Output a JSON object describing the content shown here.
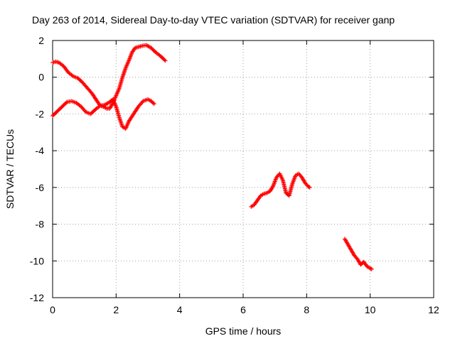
{
  "chart_data": {
    "type": "scatter",
    "title": "Day 263 of 2014, Sidereal Day-to-day VTEC variation (SDTVAR) for receiver ganp",
    "xlabel": "GPS time / hours",
    "ylabel": "SDTVAR / TECUs",
    "xlim": [
      0,
      12
    ],
    "ylim": [
      -12,
      2
    ],
    "xticks": [
      0,
      2,
      4,
      6,
      8,
      10,
      12
    ],
    "yticks": [
      2,
      0,
      -2,
      -4,
      -6,
      -8,
      -10,
      -12
    ],
    "grid": true,
    "marker": "plus",
    "color": "#ff0000",
    "series": [
      {
        "x": [
          0.0,
          0.1,
          0.2,
          0.35,
          0.5,
          0.65,
          0.8,
          0.95,
          1.1,
          1.25,
          1.4,
          1.5,
          1.6,
          1.7,
          1.8,
          1.9,
          2.0,
          2.1,
          2.2,
          2.3,
          2.4,
          2.5,
          2.6,
          2.7,
          2.8,
          2.95,
          3.1,
          3.25,
          3.4,
          3.55
        ],
        "y": [
          0.8,
          0.85,
          0.8,
          0.6,
          0.25,
          0.05,
          -0.05,
          -0.3,
          -0.6,
          -0.9,
          -1.3,
          -1.55,
          -1.6,
          -1.7,
          -1.7,
          -1.4,
          -1.0,
          -0.6,
          0.0,
          0.5,
          0.9,
          1.35,
          1.6,
          1.65,
          1.7,
          1.75,
          1.6,
          1.35,
          1.15,
          0.9
        ]
      },
      {
        "x": [
          0.0,
          0.15,
          0.3,
          0.45,
          0.6,
          0.75,
          0.9,
          1.05,
          1.2,
          1.35,
          1.5,
          1.65,
          1.8,
          1.9,
          2.0,
          2.1,
          2.2,
          2.3,
          2.4,
          2.55,
          2.7,
          2.85,
          3.0,
          3.1,
          3.2
        ],
        "y": [
          -2.1,
          -1.85,
          -1.6,
          -1.35,
          -1.3,
          -1.4,
          -1.6,
          -1.9,
          -2.0,
          -1.75,
          -1.55,
          -1.5,
          -1.35,
          -1.2,
          -1.6,
          -2.2,
          -2.7,
          -2.8,
          -2.4,
          -2.0,
          -1.6,
          -1.3,
          -1.2,
          -1.3,
          -1.45
        ]
      },
      {
        "x": [
          6.25,
          6.35,
          6.45,
          6.55,
          6.65,
          6.75,
          6.85,
          6.95,
          7.05,
          7.15,
          7.25,
          7.35,
          7.45,
          7.55,
          7.65,
          7.75,
          7.85,
          7.95,
          8.05,
          8.1
        ],
        "y": [
          -7.05,
          -6.95,
          -6.7,
          -6.45,
          -6.35,
          -6.3,
          -6.2,
          -5.9,
          -5.45,
          -5.25,
          -5.6,
          -6.3,
          -6.45,
          -5.8,
          -5.35,
          -5.25,
          -5.45,
          -5.75,
          -5.95,
          -6.0
        ]
      },
      {
        "x": [
          9.2,
          9.3,
          9.4,
          9.5,
          9.6,
          9.7,
          9.8,
          9.9,
          10.0,
          10.05
        ],
        "y": [
          -8.8,
          -9.1,
          -9.4,
          -9.7,
          -9.9,
          -10.2,
          -10.05,
          -10.3,
          -10.4,
          -10.45
        ]
      }
    ]
  }
}
